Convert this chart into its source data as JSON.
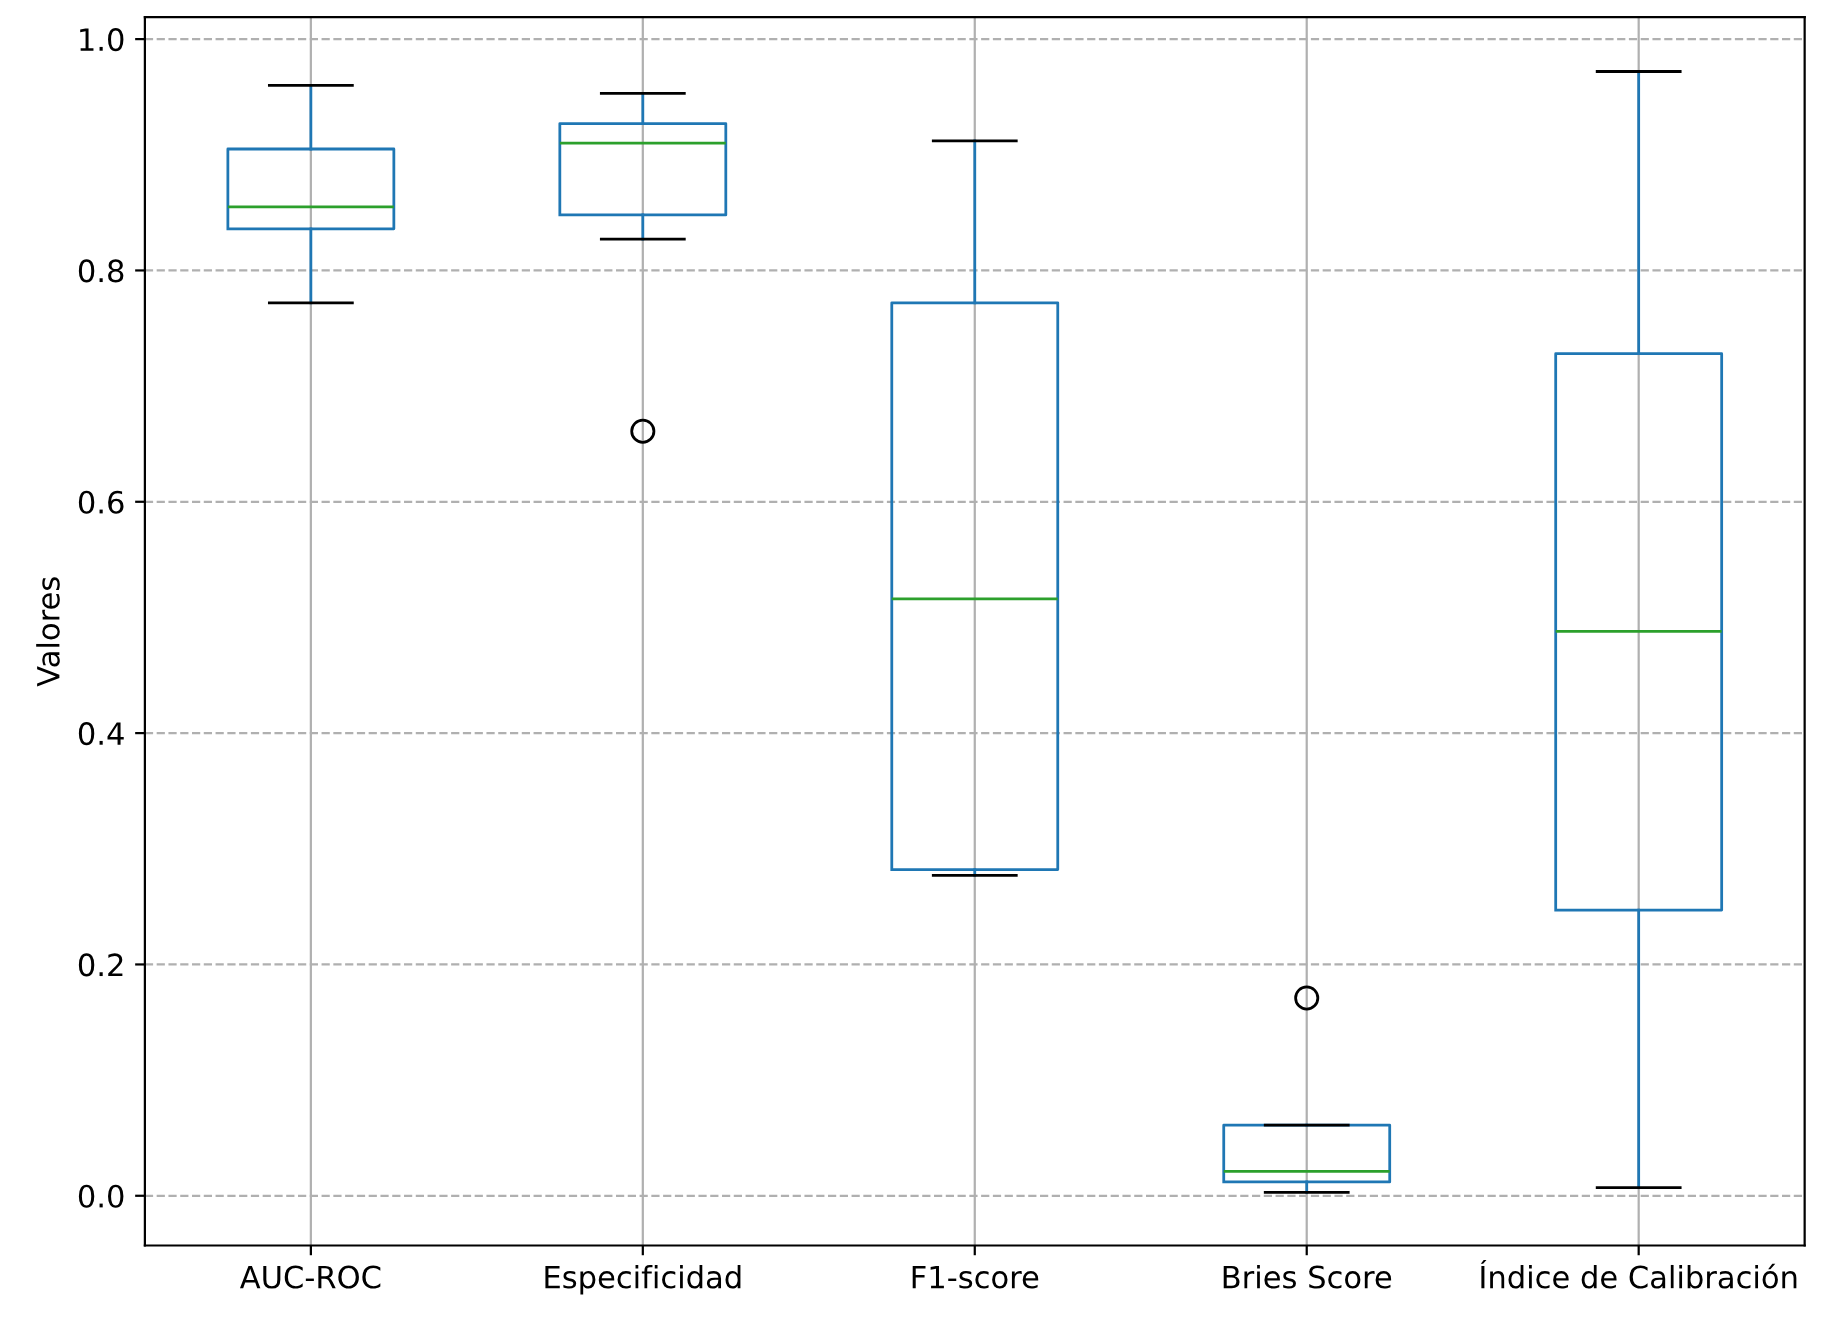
{
  "chart_data": {
    "type": "box",
    "ylabel": "Valores",
    "categories": [
      "AUC-ROC",
      "Especificidad",
      "F1-score",
      "Bries Score",
      "Índice de Calibración"
    ],
    "boxes": [
      {
        "low": 0.772,
        "q1": 0.836,
        "median": 0.855,
        "q3": 0.905,
        "high": 0.96
      },
      {
        "low": 0.827,
        "q1": 0.848,
        "median": 0.91,
        "q3": 0.927,
        "high": 0.953,
        "outliers": [
          0.661
        ]
      },
      {
        "low": 0.277,
        "q1": 0.282,
        "median": 0.516,
        "q3": 0.772,
        "high": 0.912
      },
      {
        "low": 0.003,
        "q1": 0.012,
        "median": 0.021,
        "q3": 0.061,
        "high": 0.061,
        "outliers": [
          0.171
        ]
      },
      {
        "low": 0.007,
        "q1": 0.247,
        "median": 0.488,
        "q3": 0.728,
        "high": 0.972
      }
    ],
    "color": "#1f77b4",
    "ylim": [
      -0.043,
      1.019
    ],
    "yticks": [
      {
        "value": 0,
        "label": "0.0"
      },
      0.2,
      0.4,
      0.6,
      0.8,
      {
        "value": 1,
        "label": "1.0"
      }
    ],
    "grid": true
  }
}
